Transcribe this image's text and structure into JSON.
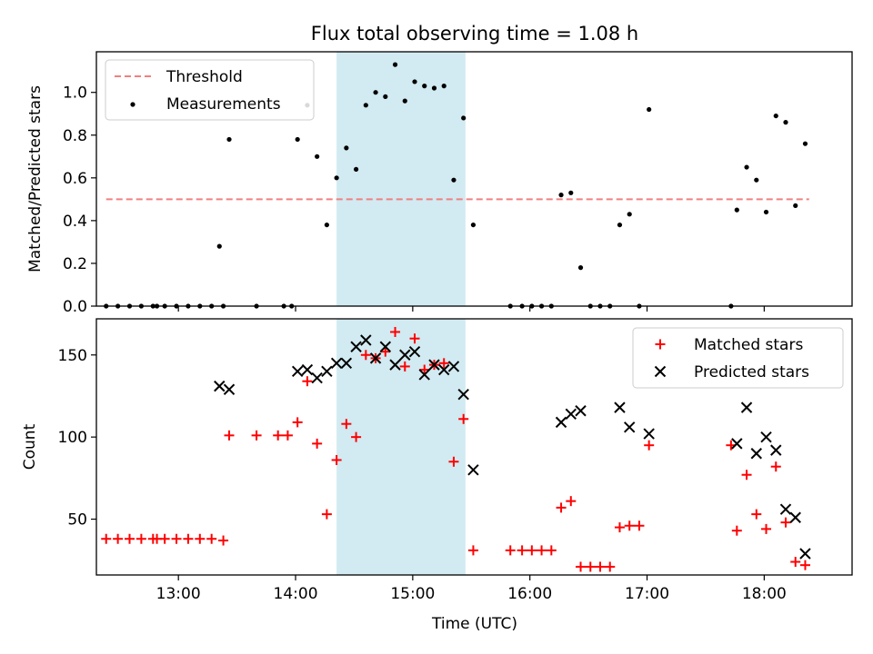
{
  "chart_data": [
    {
      "type": "scatter",
      "title": "Flux total observing time = 1.08 h",
      "xlabel": "",
      "ylabel": "Matched/Predicted stars",
      "ylim": [
        0,
        1.19
      ],
      "yticks": [
        0.0,
        0.2,
        0.4,
        0.6,
        0.8,
        1.0
      ],
      "ytick_labels": [
        "0.0",
        "0.2",
        "0.4",
        "0.6",
        "0.8",
        "1.0"
      ],
      "xlim": [
        "12:18",
        "18:45"
      ],
      "highlight_span": [
        "14:21",
        "15:27"
      ],
      "highlight_color": "#add8e6",
      "legend_position": "upper-left",
      "threshold": {
        "name": "Threshold",
        "value": 0.5,
        "x_start": "12:23",
        "x_end": "18:23",
        "color": "#f08080",
        "style": "dashed"
      },
      "series": [
        {
          "name": "Measurements",
          "color": "#000000",
          "marker": "dot",
          "points": [
            [
              "12:23",
              0.0
            ],
            [
              "12:29",
              0.0
            ],
            [
              "12:35",
              0.0
            ],
            [
              "12:41",
              0.0
            ],
            [
              "12:47",
              0.0
            ],
            [
              "12:49",
              0.0
            ],
            [
              "12:53",
              0.0
            ],
            [
              "12:59",
              0.0
            ],
            [
              "13:05",
              0.0
            ],
            [
              "13:11",
              0.0
            ],
            [
              "13:17",
              0.0
            ],
            [
              "13:23",
              0.0
            ],
            [
              "13:21",
              0.28
            ],
            [
              "13:26",
              0.78
            ],
            [
              "13:40",
              0.0
            ],
            [
              "13:54",
              0.0
            ],
            [
              "13:58",
              0.0
            ],
            [
              "14:01",
              0.78
            ],
            [
              "14:06",
              0.94
            ],
            [
              "14:11",
              0.7
            ],
            [
              "14:16",
              0.38
            ],
            [
              "14:21",
              0.6
            ],
            [
              "14:26",
              0.74
            ],
            [
              "14:31",
              0.64
            ],
            [
              "14:36",
              0.94
            ],
            [
              "14:41",
              1.0
            ],
            [
              "14:46",
              0.98
            ],
            [
              "14:51",
              1.13
            ],
            [
              "14:56",
              0.96
            ],
            [
              "15:01",
              1.05
            ],
            [
              "15:06",
              1.03
            ],
            [
              "15:11",
              1.02
            ],
            [
              "15:16",
              1.03
            ],
            [
              "15:21",
              0.59
            ],
            [
              "15:26",
              0.88
            ],
            [
              "15:31",
              0.38
            ],
            [
              "15:50",
              0.0
            ],
            [
              "15:56",
              0.0
            ],
            [
              "16:01",
              0.0
            ],
            [
              "16:06",
              0.0
            ],
            [
              "16:11",
              0.0
            ],
            [
              "16:16",
              0.52
            ],
            [
              "16:21",
              0.53
            ],
            [
              "16:26",
              0.18
            ],
            [
              "16:31",
              0.0
            ],
            [
              "16:36",
              0.0
            ],
            [
              "16:41",
              0.0
            ],
            [
              "16:46",
              0.38
            ],
            [
              "16:51",
              0.43
            ],
            [
              "16:56",
              0.0
            ],
            [
              "17:01",
              0.92
            ],
            [
              "17:43",
              0.0
            ],
            [
              "17:46",
              0.45
            ],
            [
              "17:51",
              0.65
            ],
            [
              "17:56",
              0.59
            ],
            [
              "18:01",
              0.44
            ],
            [
              "18:06",
              0.89
            ],
            [
              "18:11",
              0.86
            ],
            [
              "18:16",
              0.47
            ],
            [
              "18:21",
              0.76
            ]
          ]
        }
      ]
    },
    {
      "type": "scatter",
      "title": "",
      "xlabel": "Time (UTC)",
      "ylabel": "Count",
      "ylim": [
        16,
        172
      ],
      "yticks": [
        50,
        100,
        150
      ],
      "ytick_labels": [
        "50",
        "100",
        "150"
      ],
      "xlim": [
        "12:18",
        "18:45"
      ],
      "xticks": [
        "13:00",
        "14:00",
        "15:00",
        "16:00",
        "17:00",
        "18:00"
      ],
      "xtick_labels": [
        "13:00",
        "14:00",
        "15:00",
        "16:00",
        "17:00",
        "18:00"
      ],
      "highlight_span": [
        "14:21",
        "15:27"
      ],
      "highlight_color": "#add8e6",
      "legend_position": "upper-right",
      "series": [
        {
          "name": "Matched stars",
          "color": "#ff0000",
          "marker": "plus",
          "points": [
            [
              "12:23",
              38
            ],
            [
              "12:29",
              38
            ],
            [
              "12:35",
              38
            ],
            [
              "12:41",
              38
            ],
            [
              "12:47",
              38
            ],
            [
              "12:49",
              38
            ],
            [
              "12:53",
              38
            ],
            [
              "12:59",
              38
            ],
            [
              "13:05",
              38
            ],
            [
              "13:11",
              38
            ],
            [
              "13:17",
              38
            ],
            [
              "13:23",
              37
            ],
            [
              "13:26",
              101
            ],
            [
              "13:40",
              101
            ],
            [
              "13:51",
              101
            ],
            [
              "13:56",
              101
            ],
            [
              "14:01",
              109
            ],
            [
              "14:06",
              134
            ],
            [
              "14:11",
              96
            ],
            [
              "14:16",
              53
            ],
            [
              "14:21",
              86
            ],
            [
              "14:26",
              108
            ],
            [
              "14:31",
              100
            ],
            [
              "14:36",
              150
            ],
            [
              "14:41",
              148
            ],
            [
              "14:46",
              152
            ],
            [
              "14:51",
              164
            ],
            [
              "14:56",
              143
            ],
            [
              "15:01",
              160
            ],
            [
              "15:06",
              141
            ],
            [
              "15:11",
              144
            ],
            [
              "15:16",
              145
            ],
            [
              "15:21",
              85
            ],
            [
              "15:26",
              111
            ],
            [
              "15:31",
              31
            ],
            [
              "15:50",
              31
            ],
            [
              "15:56",
              31
            ],
            [
              "16:01",
              31
            ],
            [
              "16:06",
              31
            ],
            [
              "16:11",
              31
            ],
            [
              "16:16",
              57
            ],
            [
              "16:21",
              61
            ],
            [
              "16:26",
              21
            ],
            [
              "16:31",
              21
            ],
            [
              "16:36",
              21
            ],
            [
              "16:41",
              21
            ],
            [
              "16:46",
              45
            ],
            [
              "16:51",
              46
            ],
            [
              "16:56",
              46
            ],
            [
              "17:01",
              95
            ],
            [
              "17:43",
              95
            ],
            [
              "17:46",
              43
            ],
            [
              "17:51",
              77
            ],
            [
              "17:56",
              53
            ],
            [
              "18:01",
              44
            ],
            [
              "18:06",
              82
            ],
            [
              "18:11",
              48
            ],
            [
              "18:16",
              24
            ],
            [
              "18:21",
              22
            ]
          ]
        },
        {
          "name": "Predicted stars",
          "color": "#000000",
          "marker": "x",
          "points": [
            [
              "13:21",
              131
            ],
            [
              "13:26",
              129
            ],
            [
              "14:01",
              140
            ],
            [
              "14:06",
              141
            ],
            [
              "14:11",
              136
            ],
            [
              "14:16",
              140
            ],
            [
              "14:21",
              145
            ],
            [
              "14:26",
              145
            ],
            [
              "14:31",
              155
            ],
            [
              "14:36",
              159
            ],
            [
              "14:41",
              148
            ],
            [
              "14:46",
              155
            ],
            [
              "14:51",
              144
            ],
            [
              "14:56",
              150
            ],
            [
              "15:01",
              152
            ],
            [
              "15:06",
              138
            ],
            [
              "15:11",
              144
            ],
            [
              "15:16",
              141
            ],
            [
              "15:21",
              143
            ],
            [
              "15:26",
              126
            ],
            [
              "15:31",
              80
            ],
            [
              "16:16",
              109
            ],
            [
              "16:21",
              114
            ],
            [
              "16:26",
              116
            ],
            [
              "16:46",
              118
            ],
            [
              "16:51",
              106
            ],
            [
              "17:01",
              102
            ],
            [
              "17:46",
              96
            ],
            [
              "17:51",
              118
            ],
            [
              "17:56",
              90
            ],
            [
              "18:01",
              100
            ],
            [
              "18:06",
              92
            ],
            [
              "18:11",
              56
            ],
            [
              "18:16",
              51
            ],
            [
              "18:21",
              29
            ]
          ]
        }
      ]
    }
  ]
}
